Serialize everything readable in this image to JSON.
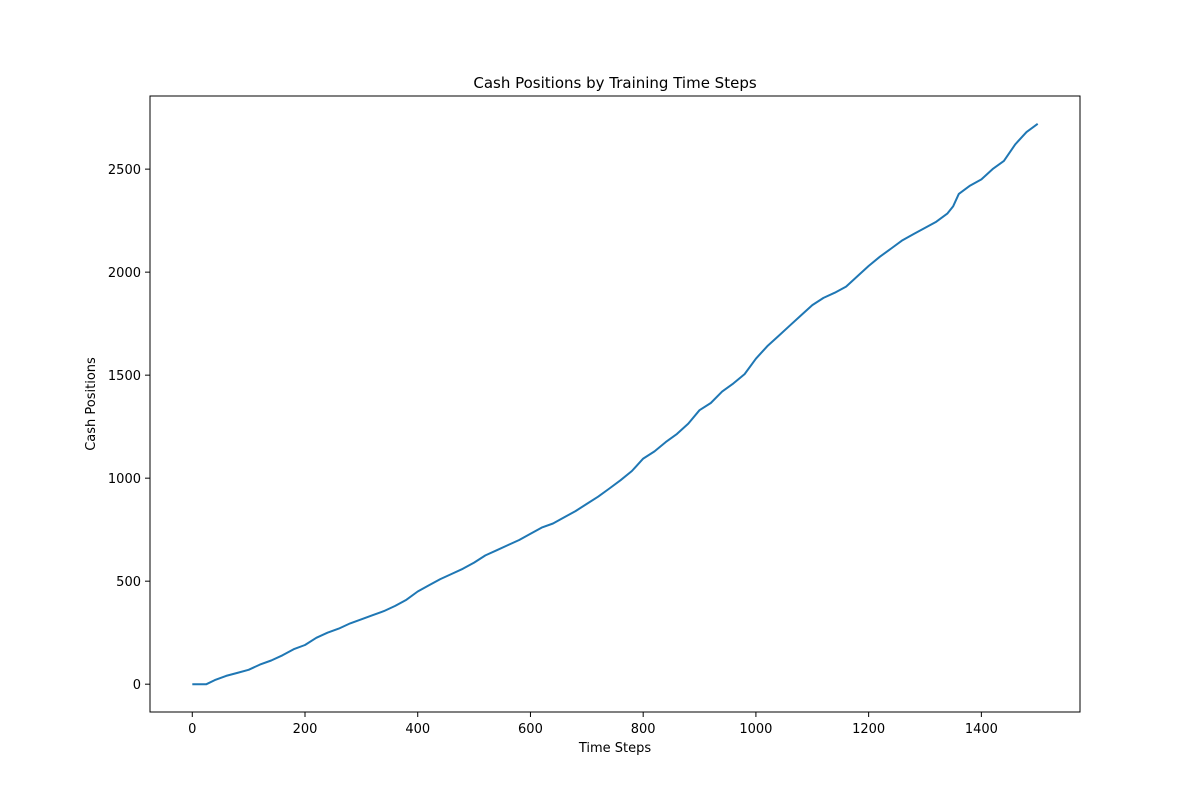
{
  "chart_data": {
    "type": "line",
    "title": "Cash Positions by Training Time Steps",
    "xlabel": "Time Steps",
    "ylabel": "Cash Positions",
    "xlim": [
      -75,
      1575
    ],
    "ylim": [
      -135,
      2855
    ],
    "xticks": [
      0,
      200,
      400,
      600,
      800,
      1000,
      1200,
      1400
    ],
    "yticks": [
      0,
      500,
      1000,
      1500,
      2000,
      2500
    ],
    "grid": false,
    "legend": "none",
    "series": [
      {
        "color": "#1f77b4",
        "x": [
          0,
          25,
          40,
          60,
          80,
          100,
          120,
          140,
          160,
          180,
          200,
          220,
          240,
          260,
          280,
          300,
          320,
          340,
          360,
          380,
          400,
          420,
          440,
          460,
          480,
          500,
          520,
          540,
          560,
          580,
          600,
          620,
          640,
          660,
          680,
          700,
          720,
          740,
          760,
          780,
          800,
          820,
          840,
          860,
          880,
          900,
          920,
          940,
          960,
          980,
          1000,
          1020,
          1040,
          1060,
          1080,
          1100,
          1120,
          1140,
          1160,
          1180,
          1200,
          1220,
          1240,
          1260,
          1280,
          1300,
          1320,
          1340,
          1350,
          1360,
          1380,
          1400,
          1420,
          1440,
          1460,
          1480,
          1500
        ],
        "y": [
          0,
          0,
          20,
          40,
          55,
          70,
          95,
          115,
          140,
          170,
          190,
          225,
          250,
          270,
          295,
          315,
          335,
          355,
          380,
          410,
          450,
          480,
          510,
          535,
          560,
          590,
          625,
          650,
          675,
          700,
          730,
          760,
          780,
          810,
          840,
          875,
          910,
          950,
          990,
          1035,
          1095,
          1130,
          1175,
          1215,
          1265,
          1330,
          1365,
          1420,
          1460,
          1505,
          1580,
          1640,
          1690,
          1740,
          1790,
          1840,
          1875,
          1900,
          1930,
          1980,
          2030,
          2075,
          2115,
          2155,
          2185,
          2215,
          2245,
          2285,
          2320,
          2380,
          2420,
          2450,
          2500,
          2540,
          2620,
          2680,
          2720
        ]
      }
    ]
  }
}
